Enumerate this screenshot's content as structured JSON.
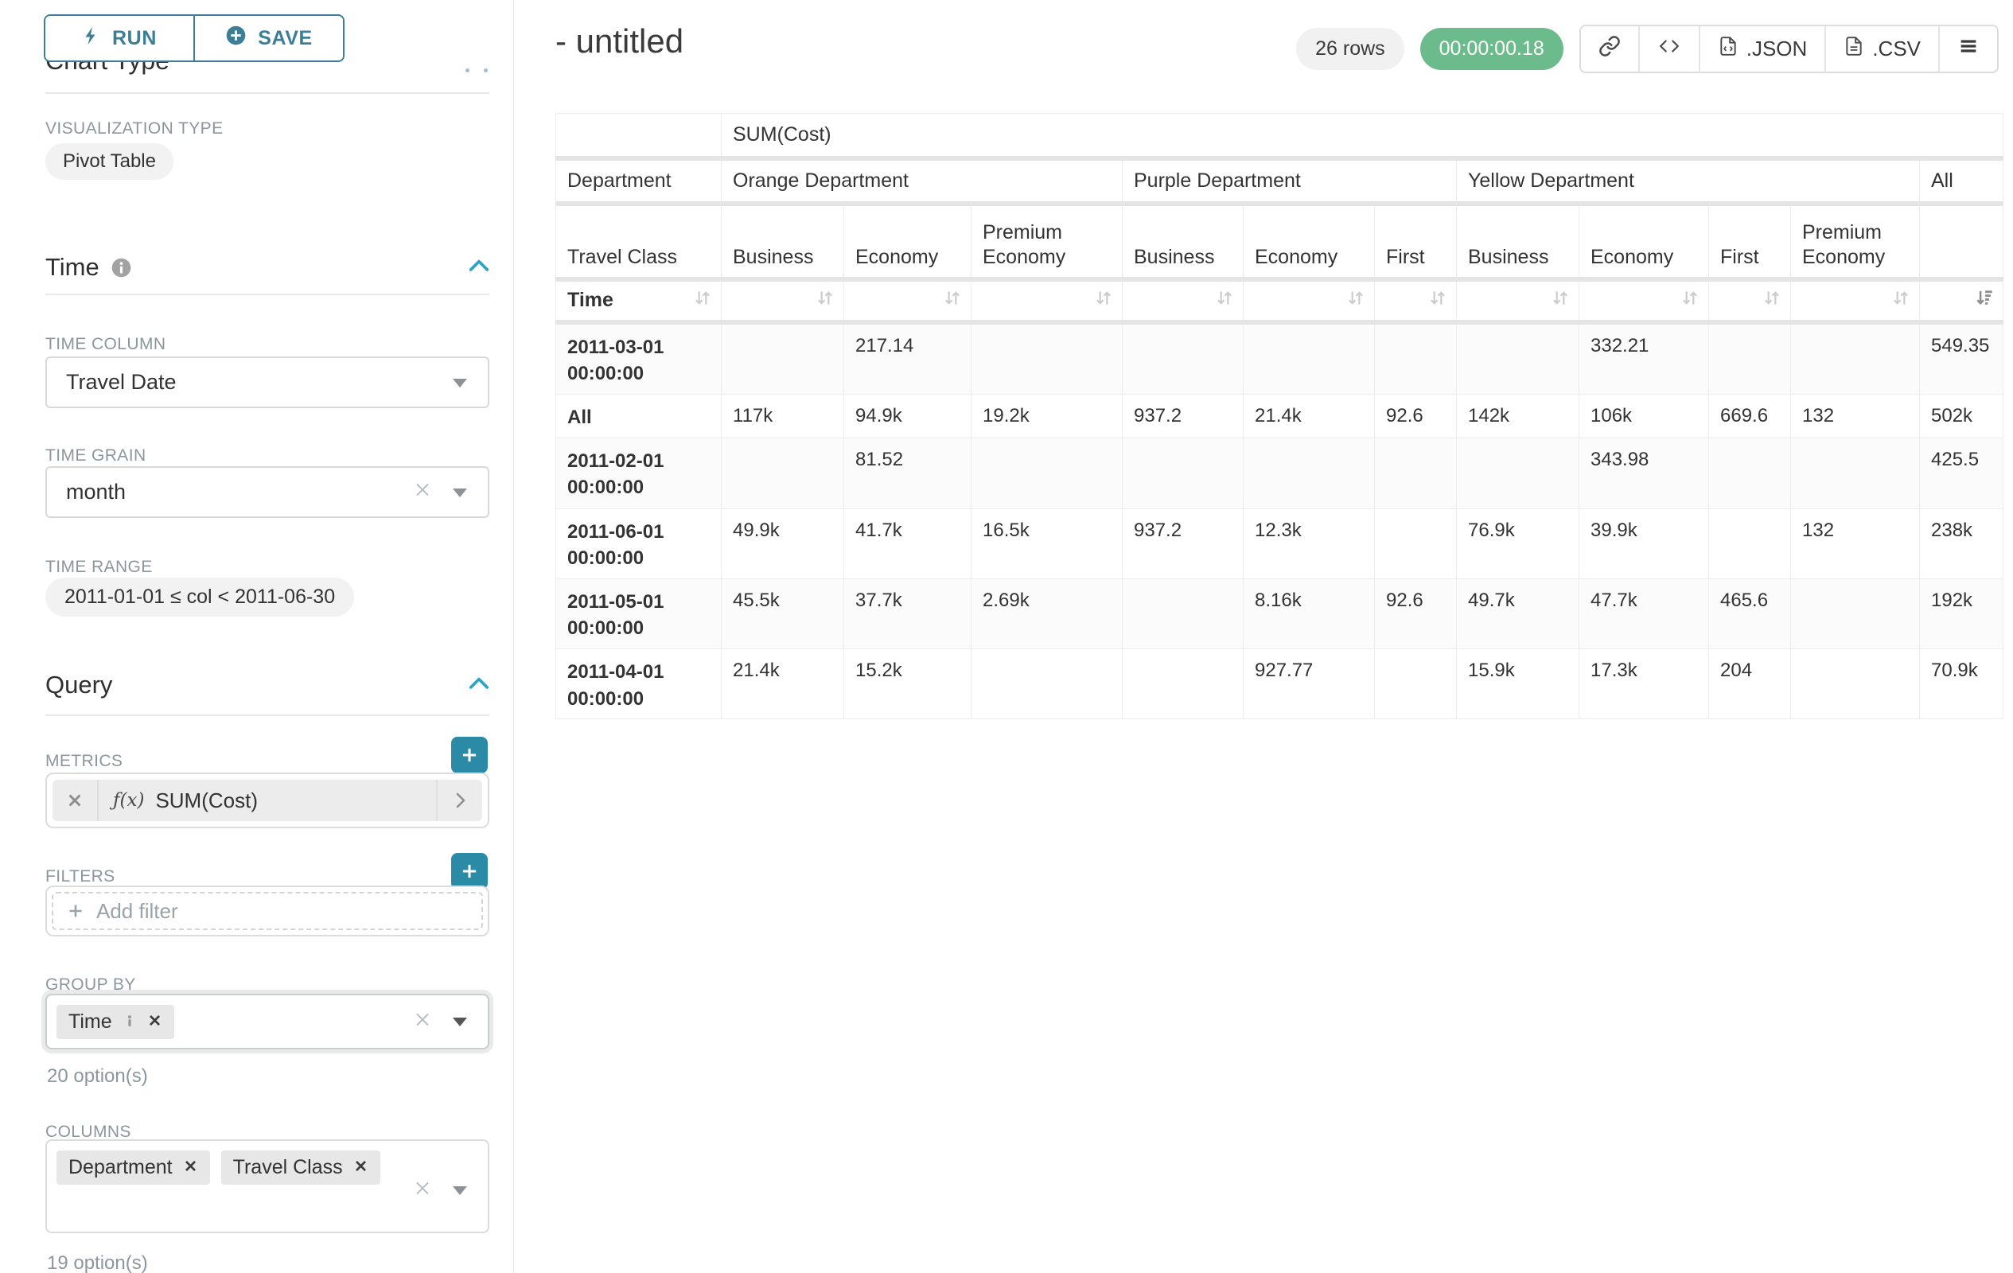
{
  "colors": {
    "accent": "#2b8aa5",
    "chevron": "#2aa3c9",
    "success": "#6cbb8c",
    "button_teal": "#3b7e95"
  },
  "sidebar": {
    "run_label": "RUN",
    "save_label": "SAVE",
    "clipped_heading": "Chart Type",
    "visualization": {
      "label": "VISUALIZATION TYPE",
      "value": "Pivot Table"
    },
    "time": {
      "title": "Time",
      "column_label": "TIME COLUMN",
      "column_value": "Travel Date",
      "grain_label": "TIME GRAIN",
      "grain_value": "month",
      "range_label": "TIME RANGE",
      "range_value": "2011-01-01 ≤ col < 2011-06-30"
    },
    "query": {
      "title": "Query",
      "metrics_label": "METRICS",
      "metric_fx": "ƒ(x)",
      "metric_value": "SUM(Cost)",
      "filters_label": "FILTERS",
      "add_filter": "Add filter",
      "group_by_label": "GROUP BY",
      "group_by_tag": "Time",
      "group_by_hint": "20 option(s)",
      "columns_label": "COLUMNS",
      "columns_tags": [
        "Department",
        "Travel Class"
      ],
      "columns_hint": "19 option(s)"
    }
  },
  "header": {
    "title": "- untitled",
    "row_count": "26 rows",
    "duration": "00:00:00.18",
    "json_label": ".JSON",
    "csv_label": ".CSV"
  },
  "pivot": {
    "metric_label": "SUM(Cost)",
    "row_header_department": "Department",
    "row_header_travel_class": "Travel Class",
    "row_header_time": "Time",
    "column_groups": [
      {
        "label": "Orange Department",
        "columns": [
          "Business",
          "Economy",
          "Premium Economy"
        ]
      },
      {
        "label": "Purple Department",
        "columns": [
          "Business",
          "Economy",
          "First"
        ]
      },
      {
        "label": "Yellow Department",
        "columns": [
          "Business",
          "Economy",
          "First",
          "Premium Economy"
        ]
      },
      {
        "label": "All",
        "columns": [
          ""
        ]
      }
    ],
    "rows": [
      {
        "label": "2011-03-01 00:00:00",
        "values": [
          "",
          "217.14",
          "",
          "",
          "",
          "",
          "",
          "332.21",
          "",
          "",
          "549.35"
        ]
      },
      {
        "label": "All",
        "values": [
          "117k",
          "94.9k",
          "19.2k",
          "937.2",
          "21.4k",
          "92.6",
          "142k",
          "106k",
          "669.6",
          "132",
          "502k"
        ]
      },
      {
        "label": "2011-02-01 00:00:00",
        "values": [
          "",
          "81.52",
          "",
          "",
          "",
          "",
          "",
          "343.98",
          "",
          "",
          "425.5"
        ]
      },
      {
        "label": "2011-06-01 00:00:00",
        "values": [
          "49.9k",
          "41.7k",
          "16.5k",
          "937.2",
          "12.3k",
          "",
          "76.9k",
          "39.9k",
          "",
          "132",
          "238k"
        ]
      },
      {
        "label": "2011-05-01 00:00:00",
        "values": [
          "45.5k",
          "37.7k",
          "2.69k",
          "",
          "8.16k",
          "92.6",
          "49.7k",
          "47.7k",
          "465.6",
          "",
          "192k"
        ]
      },
      {
        "label": "2011-04-01 00:00:00",
        "values": [
          "21.4k",
          "15.2k",
          "",
          "",
          "927.77",
          "",
          "15.9k",
          "17.3k",
          "204",
          "",
          "70.9k"
        ]
      }
    ]
  }
}
